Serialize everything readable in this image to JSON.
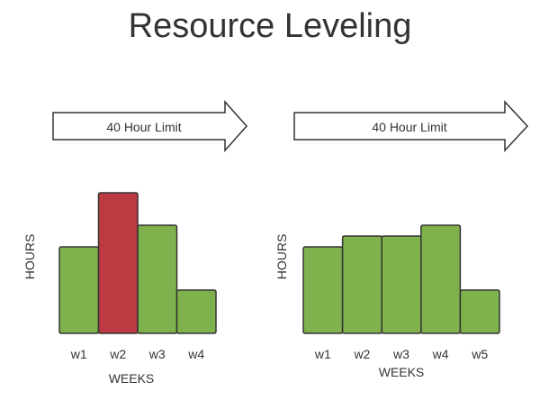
{
  "title": "Resource Leveling",
  "colors": {
    "ok_bar": "#7fb24c",
    "over_bar": "#bd3a42",
    "bar_stroke": "#333333",
    "arrow_fill": "#ffffff",
    "arrow_stroke": "#333333",
    "text": "#333333"
  },
  "charts": [
    {
      "limit_label": "40 Hour Limit",
      "ylabel": "HOURS",
      "xlabel": "WEEKS",
      "limit": 40,
      "ylim": [
        0,
        55
      ],
      "bars": [
        {
          "label": "w1",
          "hours": 32,
          "over": false
        },
        {
          "label": "w2",
          "hours": 52,
          "over": true
        },
        {
          "label": "w3",
          "hours": 40,
          "over": false
        },
        {
          "label": "w4",
          "hours": 16,
          "over": false
        }
      ]
    },
    {
      "limit_label": "40 Hour Limit",
      "ylabel": "HOURS",
      "xlabel": "WEEKS",
      "limit": 40,
      "ylim": [
        0,
        55
      ],
      "bars": [
        {
          "label": "w1",
          "hours": 32,
          "over": false
        },
        {
          "label": "w2",
          "hours": 36,
          "over": false
        },
        {
          "label": "w3",
          "hours": 36,
          "over": false
        },
        {
          "label": "w4",
          "hours": 40,
          "over": false
        },
        {
          "label": "w5",
          "hours": 16,
          "over": false
        }
      ]
    }
  ]
}
